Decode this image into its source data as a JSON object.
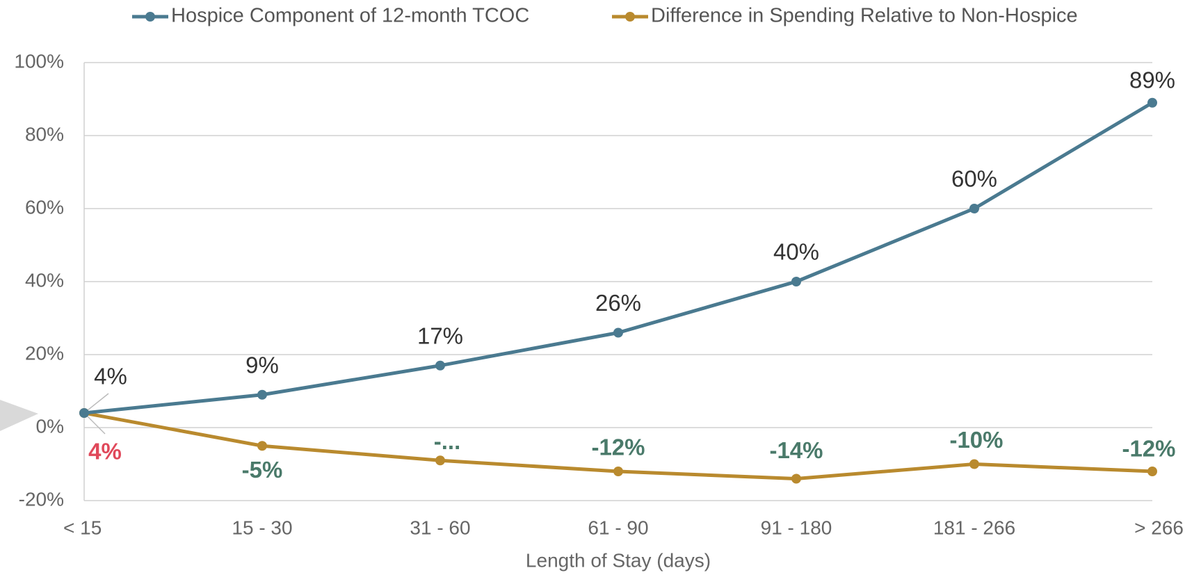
{
  "chart_data": {
    "type": "line",
    "x_label": "Length of Stay (days)",
    "categories": [
      "< 15",
      "15 - 30",
      "31 - 60",
      "61 - 90",
      "91 - 180",
      "181 - 266",
      "> 266"
    ],
    "series": [
      {
        "name": "Hospice Component of 12-month TCOC",
        "color": "#4a7a90",
        "values": [
          4,
          9,
          17,
          26,
          40,
          60,
          89
        ],
        "value_labels": [
          "4%",
          "9%",
          "17%",
          "26%",
          "40%",
          "60%",
          "89%"
        ],
        "value_label_colors": [
          "#333333",
          "#333333",
          "#333333",
          "#333333",
          "#333333",
          "#333333",
          "#333333"
        ]
      },
      {
        "name": "Difference in Spending Relative to Non-Hospice",
        "color": "#b98a2e",
        "values": [
          4,
          -5,
          -9,
          -12,
          -14,
          -10,
          -12
        ],
        "value_labels": [
          "4%",
          "-5%",
          "-...",
          "-12%",
          "-14%",
          "-10%",
          "-12%"
        ],
        "value_label_colors": [
          "#e0485a",
          "#4a7a6a",
          "#4a7a6a",
          "#4a7a6a",
          "#4a7a6a",
          "#4a7a6a",
          "#4a7a6a"
        ]
      }
    ],
    "ylim": [
      -20,
      100
    ],
    "yticks": [
      {
        "value": -20,
        "label": "-20%"
      },
      {
        "value": 0,
        "label": "0%"
      },
      {
        "value": 20,
        "label": "20%"
      },
      {
        "value": 40,
        "label": "40%"
      },
      {
        "value": 60,
        "label": "60%"
      },
      {
        "value": 80,
        "label": "80%"
      },
      {
        "value": 100,
        "label": "100%"
      }
    ],
    "grid": true
  }
}
